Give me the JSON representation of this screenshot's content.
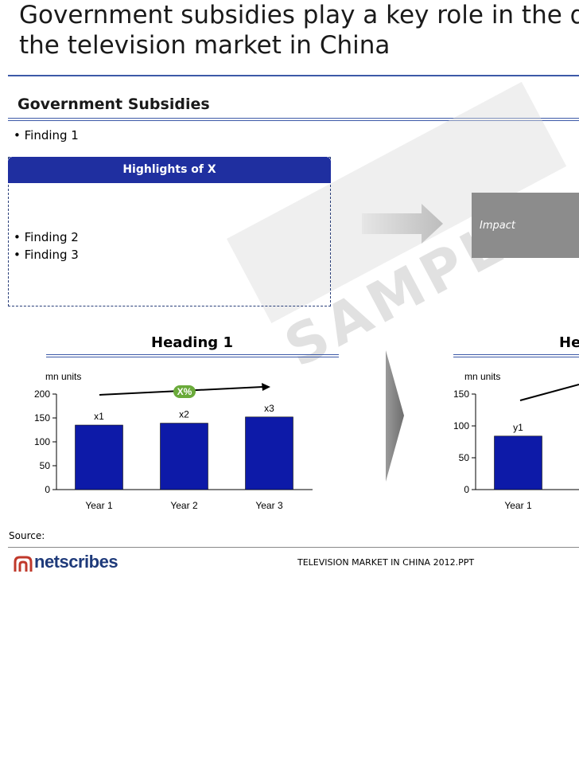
{
  "page": {
    "title_line1": "Government subsidies play a key role in the de",
    "title_line2": "the television market in China",
    "section_title": "Government Subsidies",
    "finding1": "• Finding 1",
    "highlights_header": "Highlights of X",
    "finding2": "• Finding 2",
    "finding3": "• Finding 3",
    "impact_label": "Impact",
    "watermark": "SAMPLE",
    "source_label": "Source:",
    "footer_file": "TELEVISION MARKET IN CHINA 2012.PPT",
    "logo_text": "netscribes"
  },
  "colors": {
    "bar": "#0d1aa8",
    "rule": "#3d5aa8",
    "header": "#1f2fa0",
    "growth_badge": "#6aaa3a",
    "impact": "#8c8c8c"
  },
  "chart_data": [
    {
      "type": "bar",
      "title": "Heading 1",
      "ylabel": "mn units",
      "categories": [
        "Year 1",
        "Year 2",
        "Year 3"
      ],
      "values": [
        135,
        139,
        152
      ],
      "data_labels": [
        "x1",
        "x2",
        "x3"
      ],
      "ylim": [
        0,
        200
      ],
      "yticks": [
        0,
        50,
        100,
        150,
        200
      ],
      "growth_label": "X%"
    },
    {
      "type": "bar",
      "title": "He",
      "ylabel": "mn units",
      "categories": [
        "Year 1"
      ],
      "values": [
        84
      ],
      "data_labels": [
        "y1"
      ],
      "ylim": [
        0,
        150
      ],
      "yticks": [
        0,
        50,
        100,
        150
      ]
    }
  ]
}
